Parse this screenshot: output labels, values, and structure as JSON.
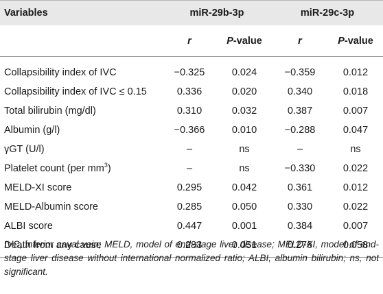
{
  "header": {
    "variables": "Variables",
    "group1": "miR-29b-3p",
    "group2": "miR-29c-3p",
    "r": "r",
    "p_prefix": "P",
    "p_suffix": "-value"
  },
  "rows": [
    {
      "label": "Collapsibility index of IVC",
      "sup": "",
      "r1": "−0.325",
      "p1": "0.024",
      "r2": "−0.359",
      "p2": "0.012"
    },
    {
      "label": "Collapsibility index of IVC ≤ 0.15",
      "sup": "",
      "r1": "0.336",
      "p1": "0.020",
      "r2": "0.340",
      "p2": "0.018"
    },
    {
      "label": "Total bilirubin (mg/dl)",
      "sup": "",
      "r1": "0.310",
      "p1": "0.032",
      "r2": "0.387",
      "p2": "0.007"
    },
    {
      "label": "Albumin (g/l)",
      "sup": "",
      "r1": "−0.366",
      "p1": "0.010",
      "r2": "−0.288",
      "p2": "0.047"
    },
    {
      "label": "γGT (U/l)",
      "sup": "",
      "r1": "–",
      "p1": "ns",
      "r2": "–",
      "p2": "ns"
    },
    {
      "label": "Platelet count (per mm",
      "sup": "3",
      "label_tail": ")",
      "r1": "–",
      "p1": "ns",
      "r2": "−0.330",
      "p2": "0.022"
    },
    {
      "label": "MELD-XI score",
      "sup": "",
      "r1": "0.295",
      "p1": "0.042",
      "r2": "0.361",
      "p2": "0.012"
    },
    {
      "label": "MELD-Albumin score",
      "sup": "",
      "r1": "0.285",
      "p1": "0.050",
      "r2": "0.330",
      "p2": "0.022"
    },
    {
      "label": "ALBI score",
      "sup": "",
      "r1": "0.447",
      "p1": "0.001",
      "r2": "0.384",
      "p2": "0.007"
    },
    {
      "label": "Death from any cause",
      "sup": "",
      "r1": "0.283",
      "p1": "0.051",
      "r2": "0.276",
      "p2": "0.058"
    }
  ],
  "footnote": "IVC, inferior caval vein; MELD, model of end-stage liver disease; MELD-XI, model of end-stage liver disease without international normalized ratio; ALBI, albumin bilirubin; ns, not significant."
}
